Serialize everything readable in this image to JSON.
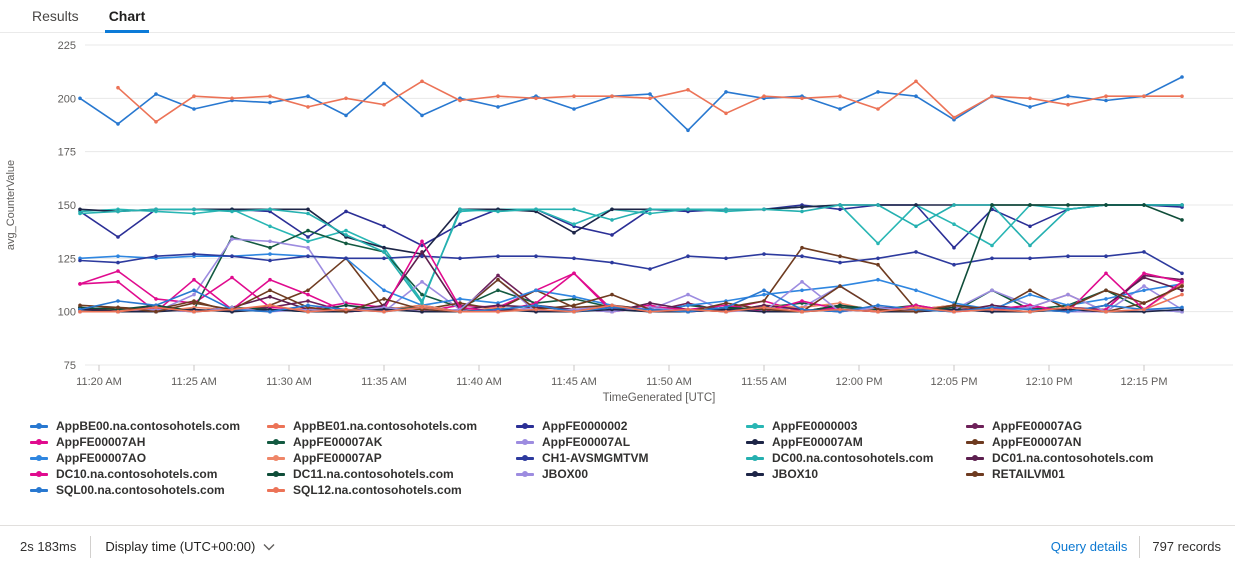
{
  "tabs": [
    {
      "label": "Results",
      "active": false
    },
    {
      "label": "Chart",
      "active": true
    }
  ],
  "chart_data": {
    "type": "line",
    "xlabel": "TimeGenerated [UTC]",
    "ylabel": "avg_CounterValue",
    "ylim": [
      75,
      225
    ],
    "y_ticks": [
      225,
      200,
      175,
      150,
      125,
      100,
      75
    ],
    "grid": "horizontal",
    "legend_position": "bottom",
    "x_tick_labels": [
      "11:20 AM",
      "11:25 AM",
      "11:30 AM",
      "11:35 AM",
      "11:40 AM",
      "11:45 AM",
      "11:50 AM",
      "11:55 AM",
      "12:00 PM",
      "12:05 PM",
      "12:10 PM",
      "12:15 PM"
    ],
    "x": [
      "11:19 AM",
      "11:21 AM",
      "11:23 AM",
      "11:25 AM",
      "11:27 AM",
      "11:29 AM",
      "11:31 AM",
      "11:33 AM",
      "11:35 AM",
      "11:37 AM",
      "11:39 AM",
      "11:41 AM",
      "11:43 AM",
      "11:45 AM",
      "11:47 AM",
      "11:49 AM",
      "11:51 AM",
      "11:53 AM",
      "11:55 AM",
      "11:57 AM",
      "11:59 AM",
      "12:01 PM",
      "12:03 PM",
      "12:05 PM",
      "12:07 PM",
      "12:09 PM",
      "12:11 PM",
      "12:13 PM",
      "12:15 PM",
      "12:17 PM"
    ],
    "series": [
      {
        "name": "AppBE00.na.contosohotels.com",
        "color": "#2878d0",
        "values": [
          200,
          188,
          202,
          195,
          199,
          198,
          201,
          192,
          207,
          192,
          200,
          196,
          201,
          195,
          201,
          202,
          185,
          203,
          200,
          201,
          195,
          203,
          201,
          190,
          201,
          196,
          201,
          199,
          201,
          210
        ]
      },
      {
        "name": "AppBE01.na.contosohotels.com",
        "color": "#ec7357",
        "values": [
          null,
          205,
          189,
          201,
          200,
          201,
          196,
          200,
          197,
          208,
          199,
          201,
          200,
          201,
          201,
          200,
          204,
          193,
          201,
          200,
          201,
          195,
          208,
          191,
          201,
          200,
          197,
          201,
          201,
          201
        ]
      },
      {
        "name": "AppFE0000002",
        "color": "#2b2f96",
        "values": [
          147,
          135,
          148,
          148,
          148,
          147,
          135,
          147,
          140,
          131,
          141,
          148,
          148,
          140,
          136,
          148,
          147,
          148,
          148,
          150,
          148,
          150,
          150,
          130,
          148,
          140,
          148,
          150,
          150,
          149
        ]
      },
      {
        "name": "AppFE0000003",
        "color": "#29b6b4",
        "values": [
          147,
          148,
          147,
          146,
          148,
          140,
          133,
          138,
          130,
          105,
          147,
          148,
          148,
          141,
          148,
          146,
          148,
          147,
          148,
          149,
          150,
          132,
          150,
          141,
          131,
          150,
          148,
          150,
          150,
          150
        ]
      },
      {
        "name": "AppFE00007AG",
        "color": "#6d2059",
        "values": [
          102,
          100,
          103,
          100,
          101,
          102,
          105,
          100,
          101,
          103,
          100,
          117,
          103,
          101,
          102,
          100,
          104,
          100,
          102,
          100,
          103,
          101,
          100,
          102,
          101,
          100,
          102,
          101,
          117,
          115
        ]
      },
      {
        "name": "AppFE00007AH",
        "color": "#e00b8e",
        "values": [
          113,
          119,
          106,
          104,
          116,
          102,
          101,
          104,
          102,
          100,
          103,
          102,
          110,
          118,
          101,
          103,
          100,
          101,
          105,
          100,
          102,
          101,
          100,
          103,
          101,
          102,
          100,
          101,
          118,
          114
        ]
      },
      {
        "name": "AppFE00007AK",
        "color": "#135a41",
        "values": [
          102,
          100,
          102,
          101,
          135,
          130,
          138,
          132,
          128,
          108,
          102,
          110,
          104,
          106,
          102,
          100,
          103,
          101,
          102,
          104,
          102,
          101,
          103,
          100,
          110,
          101,
          103,
          110,
          101,
          100
        ]
      },
      {
        "name": "AppFE00007AL",
        "color": "#9d8ce0",
        "values": [
          100,
          101,
          100,
          108,
          134,
          133,
          130,
          103,
          100,
          114,
          101,
          100,
          102,
          101,
          103,
          101,
          108,
          100,
          101,
          102,
          112,
          101,
          100,
          101,
          110,
          103,
          100,
          100,
          112,
          101
        ]
      },
      {
        "name": "AppFE00007AM",
        "color": "#1d2547",
        "values": [
          148,
          147,
          148,
          148,
          148,
          148,
          148,
          135,
          130,
          127,
          148,
          148,
          147,
          137,
          148,
          148,
          148,
          148,
          148,
          149,
          150,
          150,
          150,
          150,
          150,
          150,
          150,
          150,
          150,
          150
        ]
      },
      {
        "name": "AppFE00007AN",
        "color": "#6e3b20",
        "values": [
          101,
          102,
          101,
          105,
          100,
          103,
          110,
          125,
          102,
          101,
          104,
          101,
          110,
          102,
          103,
          101,
          100,
          102,
          105,
          130,
          126,
          122,
          101,
          103,
          100,
          110,
          101,
          100,
          104,
          112
        ]
      },
      {
        "name": "AppFE00007AO",
        "color": "#2f86e0",
        "values": [
          125,
          126,
          125,
          126,
          126,
          127,
          126,
          125,
          110,
          103,
          106,
          104,
          110,
          107,
          103,
          100,
          103,
          105,
          108,
          110,
          112,
          115,
          110,
          104,
          101,
          108,
          103,
          106,
          110,
          113
        ]
      },
      {
        "name": "AppFE00007AP",
        "color": "#ef8668",
        "values": [
          100,
          101,
          100,
          102,
          101,
          100,
          102,
          100,
          101,
          103,
          100,
          102,
          100,
          101,
          100,
          102,
          101,
          100,
          103,
          102,
          104,
          100,
          101,
          103,
          100,
          102,
          108,
          100,
          101,
          113
        ]
      },
      {
        "name": "CH1-AVSMGMTVM",
        "color": "#2d3a9e",
        "values": [
          124,
          123,
          126,
          127,
          126,
          124,
          126,
          125,
          125,
          126,
          125,
          126,
          126,
          125,
          123,
          120,
          126,
          125,
          127,
          126,
          123,
          125,
          128,
          122,
          125,
          125,
          126,
          126,
          128,
          118
        ]
      },
      {
        "name": "DC00.na.contosohotels.com",
        "color": "#25b0b0",
        "values": [
          146,
          147,
          148,
          148,
          147,
          148,
          146,
          136,
          128,
          104,
          148,
          147,
          148,
          148,
          143,
          148,
          148,
          148,
          148,
          147,
          150,
          150,
          140,
          150,
          150,
          131,
          148,
          150,
          150,
          150
        ]
      },
      {
        "name": "DC01.na.contosohotels.com",
        "color": "#5c1f4f",
        "values": [
          102,
          100,
          101,
          100,
          102,
          107,
          101,
          100,
          103,
          128,
          101,
          103,
          102,
          101,
          100,
          104,
          101,
          100,
          103,
          101,
          100,
          102,
          101,
          100,
          103,
          101,
          100,
          103,
          116,
          110
        ]
      },
      {
        "name": "DC10.na.contosohotels.com",
        "color": "#e00b8e",
        "values": [
          113,
          114,
          100,
          115,
          101,
          115,
          108,
          100,
          101,
          133,
          102,
          100,
          104,
          118,
          100,
          102,
          101,
          103,
          100,
          105,
          101,
          100,
          103,
          100,
          101,
          103,
          100,
          118,
          101,
          114
        ]
      },
      {
        "name": "DC11.na.contosohotels.com",
        "color": "#0f4d39",
        "values": [
          102,
          101,
          103,
          100,
          102,
          101,
          100,
          103,
          101,
          102,
          100,
          101,
          103,
          100,
          102,
          101,
          100,
          102,
          101,
          100,
          103,
          101,
          100,
          102,
          150,
          150,
          150,
          150,
          150,
          143
        ]
      },
      {
        "name": "JBOX00",
        "color": "#9d8ce0",
        "values": [
          100,
          100,
          101,
          100,
          102,
          100,
          101,
          100,
          102,
          100,
          101,
          115,
          100,
          101,
          100,
          102,
          100,
          101,
          100,
          114,
          100,
          102,
          100,
          101,
          100,
          102,
          108,
          100,
          101,
          100
        ]
      },
      {
        "name": "JBOX10",
        "color": "#1d2547",
        "values": [
          101,
          100,
          100,
          101,
          100,
          101,
          100,
          100,
          101,
          100,
          100,
          101,
          100,
          100,
          101,
          100,
          100,
          101,
          100,
          100,
          101,
          100,
          100,
          101,
          100,
          100,
          101,
          100,
          100,
          101
        ]
      },
      {
        "name": "RETAILVM01",
        "color": "#6e3b20",
        "values": [
          103,
          102,
          100,
          104,
          101,
          110,
          102,
          100,
          106,
          101,
          100,
          115,
          101,
          103,
          108,
          101,
          100,
          104,
          101,
          100,
          112,
          101,
          100,
          103,
          101,
          100,
          102,
          110,
          104,
          112
        ]
      },
      {
        "name": "SQL00.na.contosohotels.com",
        "color": "#2878d0",
        "values": [
          101,
          105,
          103,
          110,
          101,
          100,
          103,
          101,
          100,
          102,
          100,
          101,
          103,
          100,
          102,
          101,
          100,
          102,
          110,
          101,
          100,
          103,
          101,
          100,
          102,
          101,
          100,
          103,
          101,
          102
        ]
      },
      {
        "name": "SQL12.na.contosohotels.com",
        "color": "#ec7357",
        "values": [
          100,
          100,
          102,
          100,
          101,
          103,
          100,
          101,
          100,
          102,
          100,
          100,
          101,
          100,
          103,
          100,
          101,
          100,
          102,
          100,
          101,
          100,
          102,
          100,
          101,
          100,
          102,
          100,
          101,
          108
        ]
      }
    ]
  },
  "footer": {
    "duration": "2s 183ms",
    "display_time_label": "Display time (UTC+00:00)",
    "query_details_label": "Query details",
    "records_label": "797 records"
  },
  "colors": {
    "accent": "#0078d4",
    "tab_underline": "#0c7bd8",
    "grid_line": "#e8e8e8",
    "axis_text": "#605e5c",
    "legend_text": "#323130"
  }
}
